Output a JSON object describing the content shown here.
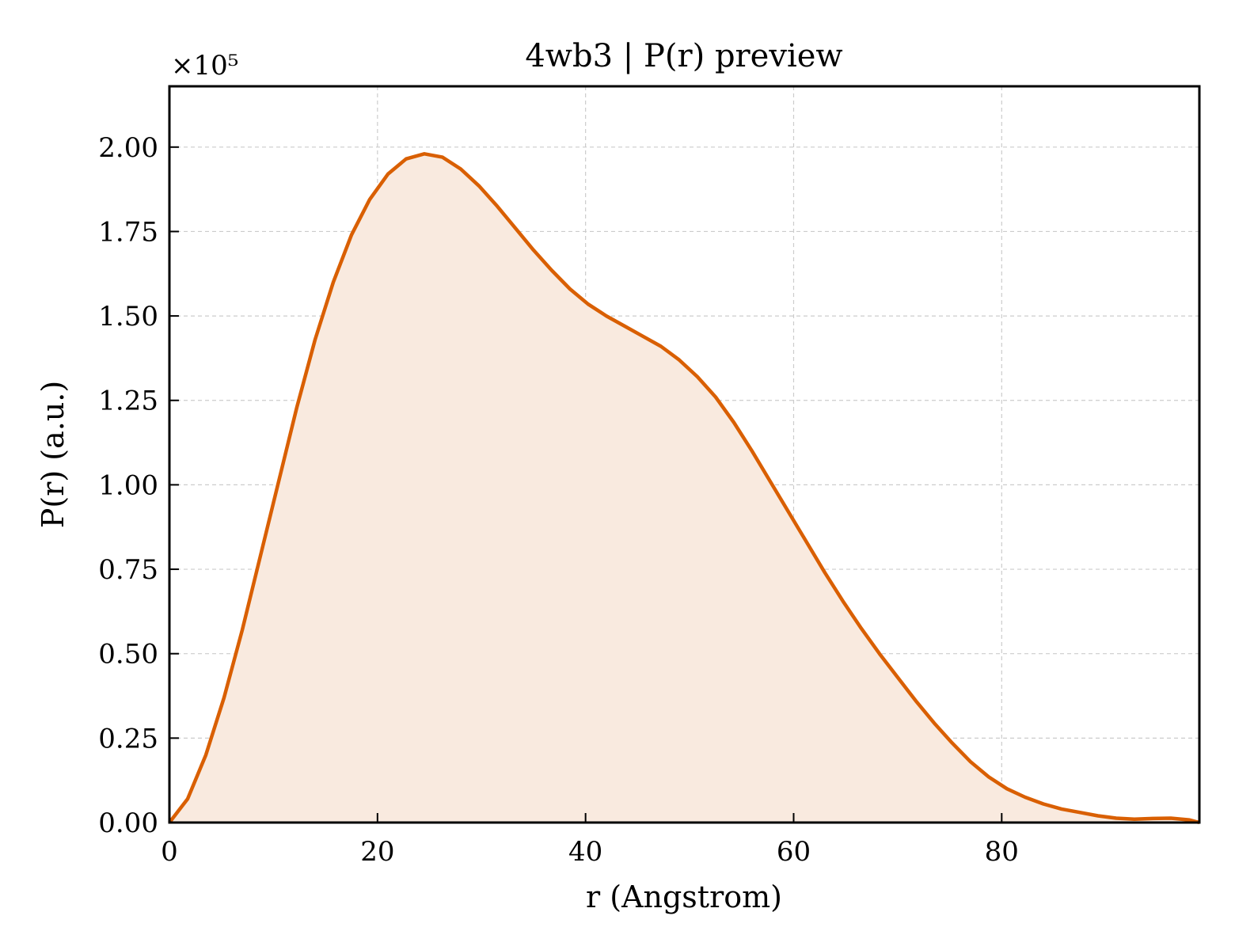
{
  "chart_data": {
    "type": "area",
    "title": "4wb3 | P(r) preview",
    "xlabel": "r (Angstrom)",
    "ylabel": "P(r) (a.u.)",
    "y_offset_label": "×10⁵",
    "xlim": [
      0,
      99
    ],
    "ylim": [
      0,
      2.18
    ],
    "x_ticks": [
      0,
      20,
      40,
      60,
      80
    ],
    "x_tick_labels": [
      "0",
      "20",
      "40",
      "60",
      "80"
    ],
    "y_ticks": [
      0,
      0.25,
      0.5,
      0.75,
      1.0,
      1.25,
      1.5,
      1.75,
      2.0
    ],
    "y_tick_labels": [
      "0.00",
      "0.25",
      "0.50",
      "0.75",
      "1.00",
      "1.25",
      "1.50",
      "1.75",
      "2.00"
    ],
    "grid": true,
    "colors": {
      "line": "#d95f02",
      "fill": "#f9eadf"
    },
    "series": [
      {
        "x": [
          0,
          1.75,
          3.5,
          5.25,
          7.0,
          8.75,
          10.5,
          12.25,
          14.0,
          15.75,
          17.5,
          19.25,
          21.0,
          22.75,
          24.5,
          26.25,
          28.0,
          29.75,
          31.5,
          33.25,
          35.0,
          36.75,
          38.5,
          40.25,
          42.0,
          43.75,
          45.5,
          47.25,
          49.0,
          50.75,
          52.5,
          54.25,
          56.0,
          57.75,
          59.5,
          61.25,
          63.0,
          64.75,
          66.5,
          68.25,
          70.0,
          71.75,
          73.5,
          75.25,
          77.0,
          78.75,
          80.5,
          82.25,
          84.0,
          85.75,
          87.5,
          89.25,
          91.0,
          92.75,
          94.5,
          96.25,
          98.0,
          99.0
        ],
        "y": [
          0.0,
          0.07,
          0.2,
          0.37,
          0.57,
          0.79,
          1.01,
          1.23,
          1.43,
          1.6,
          1.74,
          1.845,
          1.92,
          1.965,
          1.98,
          1.97,
          1.935,
          1.885,
          1.825,
          1.76,
          1.695,
          1.635,
          1.58,
          1.535,
          1.5,
          1.47,
          1.44,
          1.41,
          1.37,
          1.32,
          1.26,
          1.185,
          1.1,
          1.01,
          0.92,
          0.83,
          0.74,
          0.655,
          0.575,
          0.5,
          0.43,
          0.36,
          0.295,
          0.235,
          0.18,
          0.135,
          0.1,
          0.075,
          0.055,
          0.04,
          0.03,
          0.02,
          0.013,
          0.01,
          0.012,
          0.013,
          0.008,
          0.0
        ]
      }
    ]
  }
}
